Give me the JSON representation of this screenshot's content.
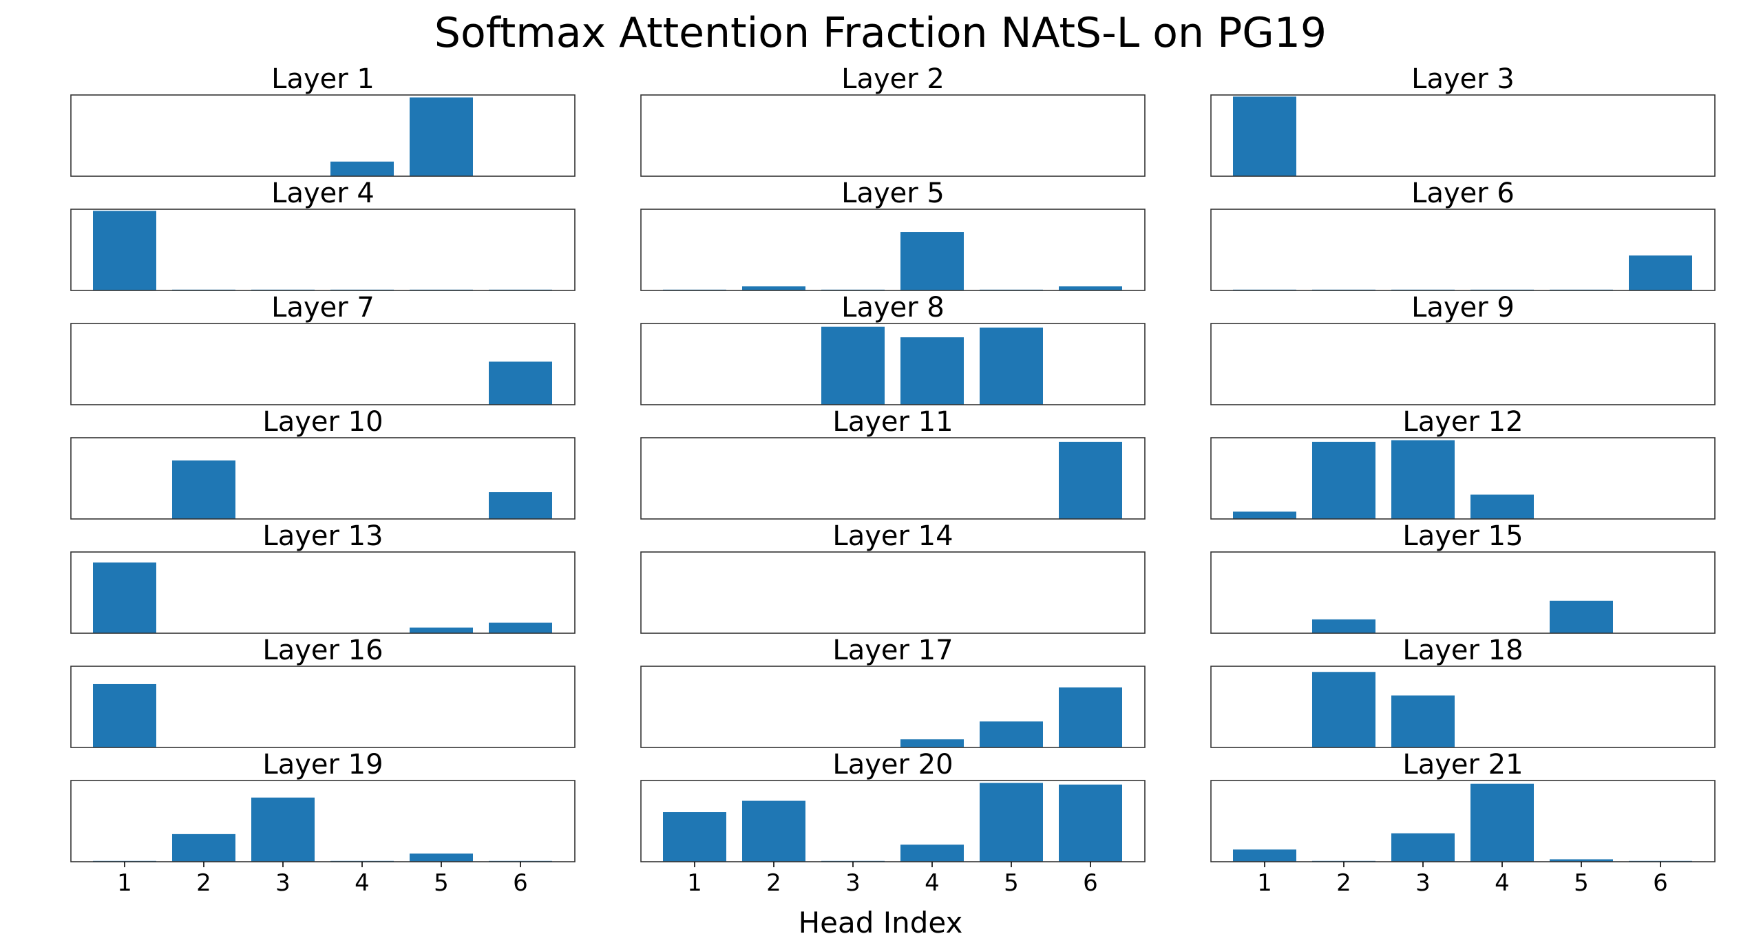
{
  "chart_data": {
    "type": "bar",
    "title": "Softmax Attention Fraction NAtS-L on PG19",
    "xlabel": "Head Index",
    "ylabel": "",
    "categories": [
      "1",
      "2",
      "3",
      "4",
      "5",
      "6"
    ],
    "ylim": [
      0,
      1
    ],
    "color": "#1f77b4",
    "y_ticks_shown": false,
    "grid": false,
    "layout": "7 rows x 3 columns of subplots",
    "x_ticks_shown_on": "bottom row",
    "subplots": [
      {
        "title": "Layer 1",
        "values": [
          0.0,
          0.0,
          0.0,
          0.18,
          0.97,
          0.0
        ]
      },
      {
        "title": "Layer 2",
        "values": [
          0.0,
          0.0,
          0.0,
          0.0,
          0.0,
          0.0
        ]
      },
      {
        "title": "Layer 3",
        "values": [
          0.98,
          0.0,
          0.0,
          0.0,
          0.0,
          0.0
        ]
      },
      {
        "title": "Layer 4",
        "values": [
          0.98,
          0.01,
          0.01,
          0.01,
          0.01,
          0.01
        ]
      },
      {
        "title": "Layer 5",
        "values": [
          0.01,
          0.05,
          0.01,
          0.72,
          0.01,
          0.05
        ]
      },
      {
        "title": "Layer 6",
        "values": [
          0.01,
          0.01,
          0.01,
          0.01,
          0.01,
          0.43
        ]
      },
      {
        "title": "Layer 7",
        "values": [
          0.0,
          0.0,
          0.0,
          0.0,
          0.0,
          0.53
        ]
      },
      {
        "title": "Layer 8",
        "values": [
          0.0,
          0.0,
          0.96,
          0.83,
          0.95,
          0.0
        ]
      },
      {
        "title": "Layer 9",
        "values": [
          0.0,
          0.0,
          0.0,
          0.0,
          0.0,
          0.0
        ]
      },
      {
        "title": "Layer 10",
        "values": [
          0.0,
          0.72,
          0.0,
          0.0,
          0.0,
          0.33
        ]
      },
      {
        "title": "Layer 11",
        "values": [
          0.0,
          0.0,
          0.0,
          0.0,
          0.0,
          0.95
        ]
      },
      {
        "title": "Layer 12",
        "values": [
          0.09,
          0.95,
          0.97,
          0.3,
          0.0,
          0.0
        ]
      },
      {
        "title": "Layer 13",
        "values": [
          0.87,
          0.0,
          0.0,
          0.0,
          0.07,
          0.13
        ]
      },
      {
        "title": "Layer 14",
        "values": [
          0.0,
          0.0,
          0.0,
          0.0,
          0.0,
          0.0
        ]
      },
      {
        "title": "Layer 15",
        "values": [
          0.0,
          0.17,
          0.0,
          0.0,
          0.4,
          0.0
        ]
      },
      {
        "title": "Layer 16",
        "values": [
          0.78,
          0.0,
          0.0,
          0.0,
          0.0,
          0.0
        ]
      },
      {
        "title": "Layer 17",
        "values": [
          0.0,
          0.0,
          0.0,
          0.1,
          0.32,
          0.74
        ]
      },
      {
        "title": "Layer 18",
        "values": [
          0.0,
          0.93,
          0.64,
          0.0,
          0.0,
          0.0
        ]
      },
      {
        "title": "Layer 19",
        "values": [
          0.01,
          0.34,
          0.79,
          0.01,
          0.1,
          0.01
        ]
      },
      {
        "title": "Layer 20",
        "values": [
          0.61,
          0.75,
          0.01,
          0.21,
          0.97,
          0.95
        ]
      },
      {
        "title": "Layer 21",
        "values": [
          0.15,
          0.01,
          0.35,
          0.96,
          0.03,
          0.01
        ]
      }
    ]
  }
}
